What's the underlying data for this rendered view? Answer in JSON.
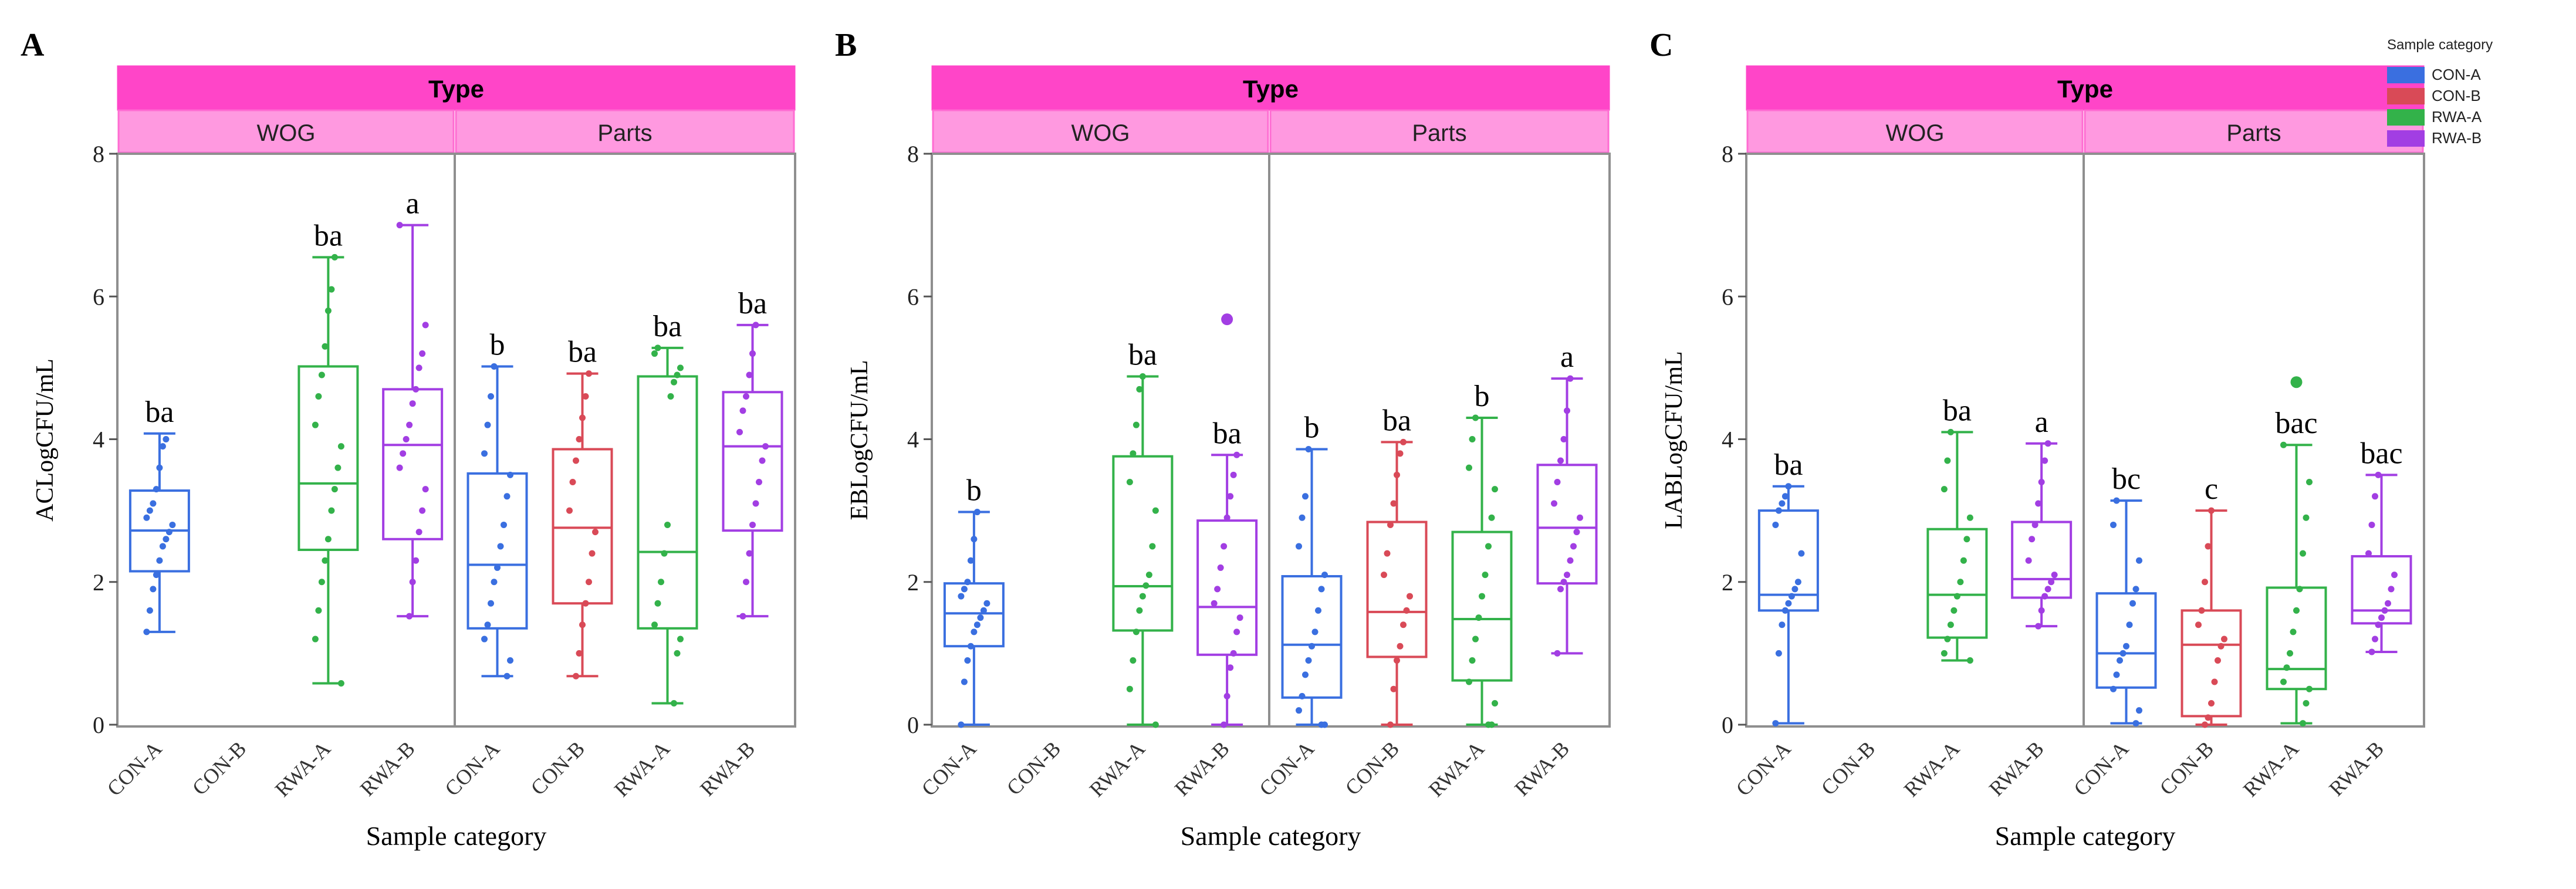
{
  "figure": {
    "legend": {
      "title": "Sample category",
      "items": [
        {
          "label": "CON-A",
          "color": "#3a6fe0"
        },
        {
          "label": "CON-B",
          "color": "#d94a57"
        },
        {
          "label": "RWA-A",
          "color": "#33b24a"
        },
        {
          "label": "RWA-B",
          "color": "#a23ee3"
        }
      ]
    }
  },
  "chart_data": [
    {
      "type": "box",
      "panel_letter": "A",
      "ylabel": "ACLogCFU/mL",
      "xlabel": "Sample category",
      "header": "Type",
      "groups": [
        "WOG",
        "Parts"
      ],
      "categories": [
        "CON-A",
        "CON-B",
        "RWA-A",
        "RWA-B"
      ],
      "ylim": [
        0,
        8
      ],
      "yticks": [
        0,
        2,
        4,
        6,
        8
      ],
      "series": [
        {
          "group": "WOG",
          "category": "CON-A",
          "min": 1.3,
          "q1": 2.15,
          "median": 2.72,
          "q3": 3.28,
          "max": 4.08,
          "letter": "ba",
          "points": [
            1.3,
            1.6,
            1.9,
            2.1,
            2.3,
            2.5,
            2.6,
            2.7,
            2.8,
            2.9,
            3.0,
            3.1,
            3.3,
            3.6,
            3.9,
            4.0
          ]
        },
        {
          "group": "WOG",
          "category": "CON-B",
          "empty": true
        },
        {
          "group": "WOG",
          "category": "RWA-A",
          "min": 0.58,
          "q1": 2.45,
          "median": 3.38,
          "q3": 5.02,
          "max": 6.55,
          "letter": "ba",
          "points": [
            0.58,
            1.2,
            1.6,
            2.0,
            2.3,
            2.6,
            3.0,
            3.3,
            3.6,
            3.9,
            4.2,
            4.6,
            4.9,
            5.3,
            5.8,
            6.1,
            6.55
          ]
        },
        {
          "group": "WOG",
          "category": "RWA-B",
          "min": 1.52,
          "q1": 2.6,
          "median": 3.92,
          "q3": 4.7,
          "max": 7.0,
          "letter": "a",
          "points": [
            1.52,
            2.0,
            2.3,
            2.7,
            3.0,
            3.3,
            3.6,
            3.8,
            4.0,
            4.2,
            4.5,
            4.7,
            5.0,
            5.2,
            5.6,
            7.0
          ]
        },
        {
          "group": "Parts",
          "category": "CON-A",
          "min": 0.68,
          "q1": 1.35,
          "median": 2.24,
          "q3": 3.52,
          "max": 5.02,
          "letter": "b",
          "points": [
            0.68,
            0.9,
            1.2,
            1.4,
            1.7,
            2.0,
            2.2,
            2.5,
            2.8,
            3.2,
            3.5,
            3.8,
            4.2,
            4.6,
            5.02
          ]
        },
        {
          "group": "Parts",
          "category": "CON-B",
          "min": 0.68,
          "q1": 1.7,
          "median": 2.76,
          "q3": 3.86,
          "max": 4.92,
          "letter": "ba",
          "points": [
            0.68,
            1.0,
            1.4,
            1.7,
            2.0,
            2.4,
            2.7,
            3.0,
            3.4,
            3.7,
            4.0,
            4.3,
            4.6,
            4.92
          ]
        },
        {
          "group": "Parts",
          "category": "RWA-A",
          "min": 0.3,
          "q1": 1.35,
          "median": 2.42,
          "q3": 4.88,
          "max": 5.28,
          "letter": "ba",
          "points": [
            0.3,
            1.0,
            1.2,
            1.4,
            1.7,
            2.0,
            2.4,
            2.8,
            4.6,
            4.8,
            4.9,
            5.0,
            5.2,
            5.28
          ]
        },
        {
          "group": "Parts",
          "category": "RWA-B",
          "min": 1.52,
          "q1": 2.72,
          "median": 3.9,
          "q3": 4.66,
          "max": 5.6,
          "letter": "ba",
          "points": [
            1.52,
            2.0,
            2.4,
            2.8,
            3.1,
            3.4,
            3.7,
            3.9,
            4.1,
            4.4,
            4.6,
            4.9,
            5.2,
            5.6
          ]
        }
      ]
    },
    {
      "type": "box",
      "panel_letter": "B",
      "ylabel": "EBLogCFU/mL",
      "xlabel": "Sample category",
      "header": "Type",
      "groups": [
        "WOG",
        "Parts"
      ],
      "categories": [
        "CON-A",
        "CON-B",
        "RWA-A",
        "RWA-B"
      ],
      "ylim": [
        0,
        8
      ],
      "yticks": [
        0,
        2,
        4,
        6,
        8
      ],
      "series": [
        {
          "group": "WOG",
          "category": "CON-A",
          "min": 0.0,
          "q1": 1.1,
          "median": 1.56,
          "q3": 1.98,
          "max": 2.98,
          "letter": "b",
          "points": [
            0.0,
            0.6,
            0.9,
            1.1,
            1.3,
            1.4,
            1.5,
            1.6,
            1.7,
            1.8,
            1.9,
            2.0,
            2.3,
            2.6,
            2.98
          ]
        },
        {
          "group": "WOG",
          "category": "CON-B",
          "empty": true
        },
        {
          "group": "WOG",
          "category": "RWA-A",
          "min": 0.0,
          "q1": 1.32,
          "median": 1.94,
          "q3": 3.76,
          "max": 4.88,
          "letter": "ba",
          "points": [
            0.0,
            0.5,
            0.9,
            1.3,
            1.6,
            1.8,
            1.95,
            2.1,
            2.5,
            3.0,
            3.4,
            3.8,
            4.2,
            4.7,
            4.88
          ]
        },
        {
          "group": "WOG",
          "category": "RWA-B",
          "min": 0.0,
          "q1": 0.98,
          "median": 1.65,
          "q3": 2.86,
          "max": 3.78,
          "letter": "ba",
          "outliers": [
            5.68
          ],
          "points": [
            0.0,
            0.4,
            0.8,
            1.0,
            1.3,
            1.5,
            1.7,
            1.9,
            2.2,
            2.5,
            2.9,
            3.2,
            3.5,
            3.78
          ]
        },
        {
          "group": "Parts",
          "category": "CON-A",
          "min": 0.0,
          "q1": 0.38,
          "median": 1.12,
          "q3": 2.08,
          "max": 3.86,
          "letter": "b",
          "points": [
            0.0,
            0.0,
            0.2,
            0.4,
            0.7,
            0.9,
            1.1,
            1.3,
            1.6,
            1.9,
            2.1,
            2.5,
            2.9,
            3.2,
            3.86
          ]
        },
        {
          "group": "Parts",
          "category": "CON-B",
          "min": 0.0,
          "q1": 0.95,
          "median": 1.58,
          "q3": 2.84,
          "max": 3.96,
          "letter": "ba",
          "points": [
            0.0,
            0.5,
            0.9,
            1.1,
            1.4,
            1.6,
            1.8,
            2.1,
            2.4,
            2.8,
            3.1,
            3.5,
            3.8,
            3.96
          ]
        },
        {
          "group": "Parts",
          "category": "RWA-A",
          "min": 0.0,
          "q1": 0.62,
          "median": 1.48,
          "q3": 2.7,
          "max": 4.3,
          "letter": "b",
          "points": [
            0.0,
            0.0,
            0.3,
            0.6,
            0.9,
            1.2,
            1.5,
            1.8,
            2.1,
            2.5,
            2.9,
            3.3,
            3.6,
            4.0,
            4.3
          ]
        },
        {
          "group": "Parts",
          "category": "RWA-B",
          "min": 1.0,
          "q1": 1.98,
          "median": 2.76,
          "q3": 3.64,
          "max": 4.85,
          "letter": "a",
          "points": [
            1.0,
            1.9,
            2.0,
            2.1,
            2.3,
            2.5,
            2.7,
            2.9,
            3.1,
            3.4,
            3.7,
            4.0,
            4.4,
            4.85
          ]
        }
      ]
    },
    {
      "type": "box",
      "panel_letter": "C",
      "ylabel": "LABLogCFU/mL",
      "xlabel": "Sample category",
      "header": "Type",
      "groups": [
        "WOG",
        "Parts"
      ],
      "categories": [
        "CON-A",
        "CON-B",
        "RWA-A",
        "RWA-B"
      ],
      "ylim": [
        0,
        8
      ],
      "yticks": [
        0,
        2,
        4,
        6,
        8
      ],
      "series": [
        {
          "group": "WOG",
          "category": "CON-A",
          "min": 0.02,
          "q1": 1.6,
          "median": 1.82,
          "q3": 3.0,
          "max": 3.34,
          "letter": "ba",
          "points": [
            0.02,
            1.0,
            1.4,
            1.6,
            1.7,
            1.8,
            1.9,
            2.0,
            2.4,
            2.8,
            3.0,
            3.1,
            3.2,
            3.34
          ]
        },
        {
          "group": "WOG",
          "category": "CON-B",
          "empty": true
        },
        {
          "group": "WOG",
          "category": "RWA-A",
          "min": 0.9,
          "q1": 1.22,
          "median": 1.82,
          "q3": 2.74,
          "max": 4.1,
          "letter": "ba",
          "points": [
            0.9,
            1.0,
            1.2,
            1.4,
            1.6,
            1.8,
            2.0,
            2.3,
            2.6,
            2.9,
            3.3,
            3.7,
            4.1
          ]
        },
        {
          "group": "WOG",
          "category": "RWA-B",
          "min": 1.38,
          "q1": 1.78,
          "median": 2.04,
          "q3": 2.84,
          "max": 3.94,
          "letter": "a",
          "points": [
            1.38,
            1.6,
            1.8,
            1.9,
            2.0,
            2.1,
            2.3,
            2.6,
            2.8,
            3.1,
            3.4,
            3.7,
            3.94
          ]
        },
        {
          "group": "Parts",
          "category": "CON-A",
          "min": 0.02,
          "q1": 0.52,
          "median": 1.0,
          "q3": 1.84,
          "max": 3.14,
          "letter": "bc",
          "points": [
            0.02,
            0.2,
            0.5,
            0.7,
            0.9,
            1.0,
            1.1,
            1.4,
            1.7,
            1.9,
            2.3,
            2.8,
            3.14
          ]
        },
        {
          "group": "Parts",
          "category": "CON-B",
          "min": 0.0,
          "q1": 0.12,
          "median": 1.12,
          "q3": 1.6,
          "max": 3.0,
          "letter": "c",
          "points": [
            0.0,
            0.1,
            0.3,
            0.6,
            0.9,
            1.1,
            1.2,
            1.4,
            1.6,
            2.0,
            2.5,
            3.0
          ]
        },
        {
          "group": "Parts",
          "category": "RWA-A",
          "min": 0.02,
          "q1": 0.5,
          "median": 0.78,
          "q3": 1.92,
          "max": 3.92,
          "letter": "bac",
          "outliers": [
            4.8
          ],
          "points": [
            0.02,
            0.3,
            0.5,
            0.6,
            0.8,
            1.0,
            1.3,
            1.6,
            1.9,
            2.4,
            2.9,
            3.4,
            3.92
          ]
        },
        {
          "group": "Parts",
          "category": "RWA-B",
          "min": 1.02,
          "q1": 1.42,
          "median": 1.6,
          "q3": 2.36,
          "max": 3.5,
          "letter": "bac",
          "points": [
            1.02,
            1.2,
            1.4,
            1.5,
            1.6,
            1.7,
            1.9,
            2.1,
            2.4,
            2.8,
            3.2,
            3.5
          ]
        }
      ]
    }
  ]
}
